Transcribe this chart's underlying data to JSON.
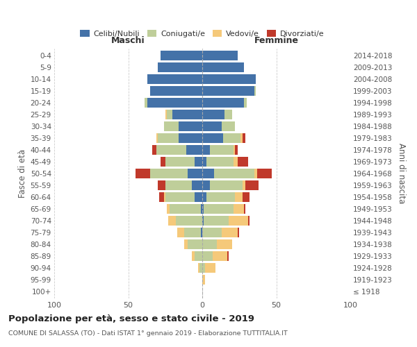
{
  "age_groups": [
    "100+",
    "95-99",
    "90-94",
    "85-89",
    "80-84",
    "75-79",
    "70-74",
    "65-69",
    "60-64",
    "55-59",
    "50-54",
    "45-49",
    "40-44",
    "35-39",
    "30-34",
    "25-29",
    "20-24",
    "15-19",
    "10-14",
    "5-9",
    "0-4"
  ],
  "birth_years": [
    "≤ 1918",
    "1919-1923",
    "1924-1928",
    "1929-1933",
    "1934-1938",
    "1939-1943",
    "1944-1948",
    "1949-1953",
    "1954-1958",
    "1959-1963",
    "1964-1968",
    "1969-1973",
    "1974-1978",
    "1979-1983",
    "1984-1988",
    "1989-1993",
    "1994-1998",
    "1999-2003",
    "2004-2008",
    "2009-2013",
    "2014-2018"
  ],
  "maschi": {
    "celibi": [
      0,
      0,
      0,
      0,
      0,
      1,
      0,
      1,
      5,
      7,
      10,
      5,
      11,
      16,
      16,
      20,
      37,
      35,
      37,
      30,
      28
    ],
    "coniugati": [
      0,
      0,
      2,
      5,
      10,
      11,
      18,
      21,
      20,
      18,
      25,
      20,
      20,
      14,
      10,
      4,
      2,
      0,
      0,
      0,
      0
    ],
    "vedovi": [
      0,
      0,
      1,
      2,
      2,
      5,
      5,
      2,
      1,
      0,
      0,
      0,
      0,
      1,
      0,
      1,
      0,
      0,
      0,
      0,
      0
    ],
    "divorziati": [
      0,
      0,
      0,
      0,
      0,
      0,
      0,
      0,
      3,
      5,
      10,
      3,
      3,
      0,
      0,
      0,
      0,
      0,
      0,
      0,
      0
    ]
  },
  "femmine": {
    "nubili": [
      0,
      0,
      0,
      0,
      0,
      0,
      1,
      1,
      3,
      5,
      8,
      3,
      5,
      14,
      13,
      15,
      28,
      35,
      36,
      28,
      24
    ],
    "coniugate": [
      0,
      0,
      2,
      7,
      10,
      13,
      17,
      20,
      19,
      22,
      27,
      18,
      16,
      12,
      9,
      5,
      2,
      1,
      0,
      0,
      0
    ],
    "vedove": [
      0,
      2,
      7,
      10,
      10,
      11,
      13,
      7,
      5,
      2,
      2,
      3,
      1,
      1,
      0,
      0,
      0,
      0,
      0,
      0,
      0
    ],
    "divorziate": [
      0,
      0,
      0,
      1,
      0,
      1,
      1,
      1,
      5,
      9,
      10,
      7,
      2,
      2,
      0,
      0,
      0,
      0,
      0,
      0,
      0
    ]
  },
  "colors": {
    "celibi": "#4472A8",
    "coniugati": "#BFCE9A",
    "vedovi": "#F5C97A",
    "divorziati": "#C0392B"
  },
  "xlim": 100,
  "title": "Popolazione per età, sesso e stato civile - 2019",
  "subtitle": "COMUNE DI SALASSA (TO) - Dati ISTAT 1° gennaio 2019 - Elaborazione TUTTITALIA.IT",
  "ylabel_left": "Fasce di età",
  "ylabel_right": "Anni di nascita",
  "header_left": "Maschi",
  "header_right": "Femmine",
  "legend_labels": [
    "Celibi/Nubili",
    "Coniugati/e",
    "Vedovi/e",
    "Divorziati/e"
  ]
}
